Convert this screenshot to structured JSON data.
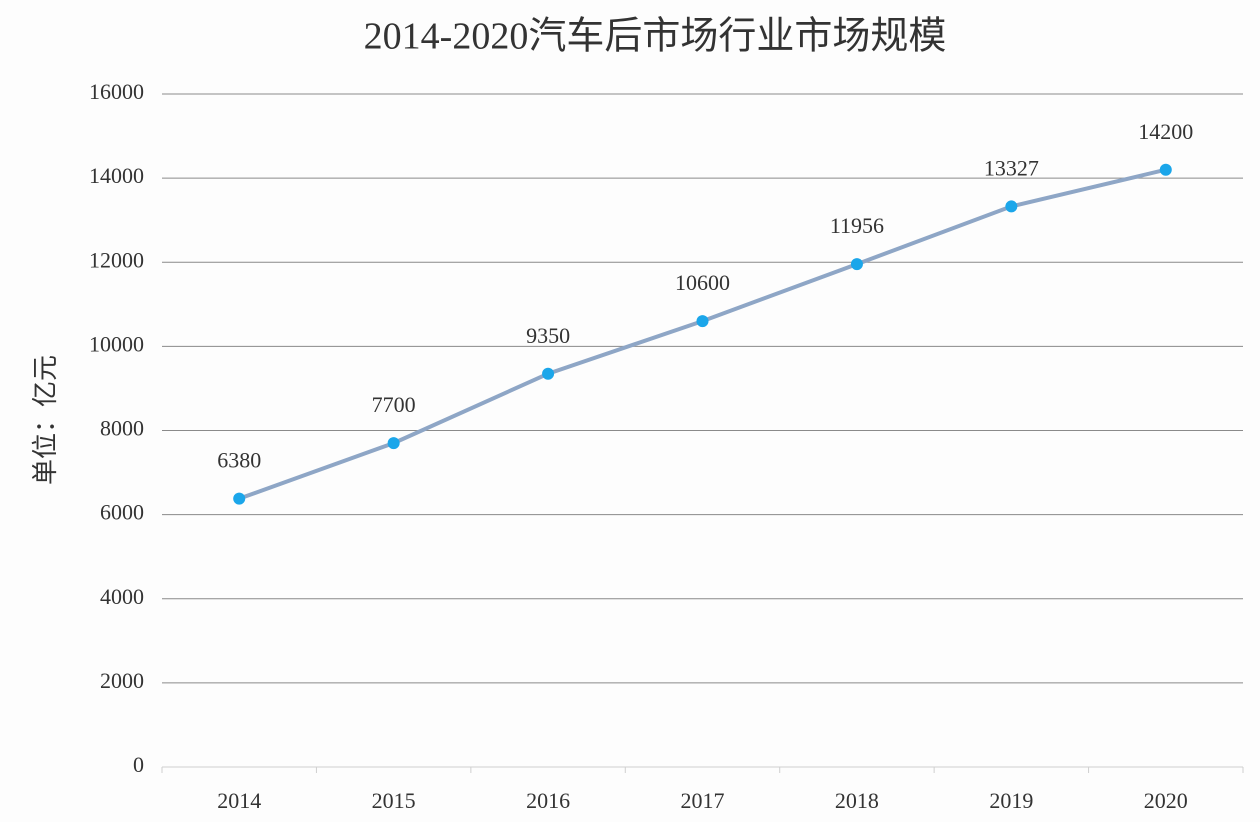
{
  "chart_data": {
    "type": "line",
    "title": "2014-2020汽车后市场行业市场规模",
    "y_label": "单位：亿元",
    "categories": [
      "2014",
      "2015",
      "2016",
      "2017",
      "2018",
      "2019",
      "2020"
    ],
    "values": [
      6380,
      7700,
      9350,
      10600,
      11956,
      13327,
      14200
    ],
    "color": "#8ea6c6",
    "marker_color": "#1ba6ea",
    "ylim": [
      0,
      16000
    ],
    "yticks": [
      0,
      2000,
      4000,
      6000,
      8000,
      10000,
      12000,
      14000,
      16000
    ],
    "grid": true
  }
}
